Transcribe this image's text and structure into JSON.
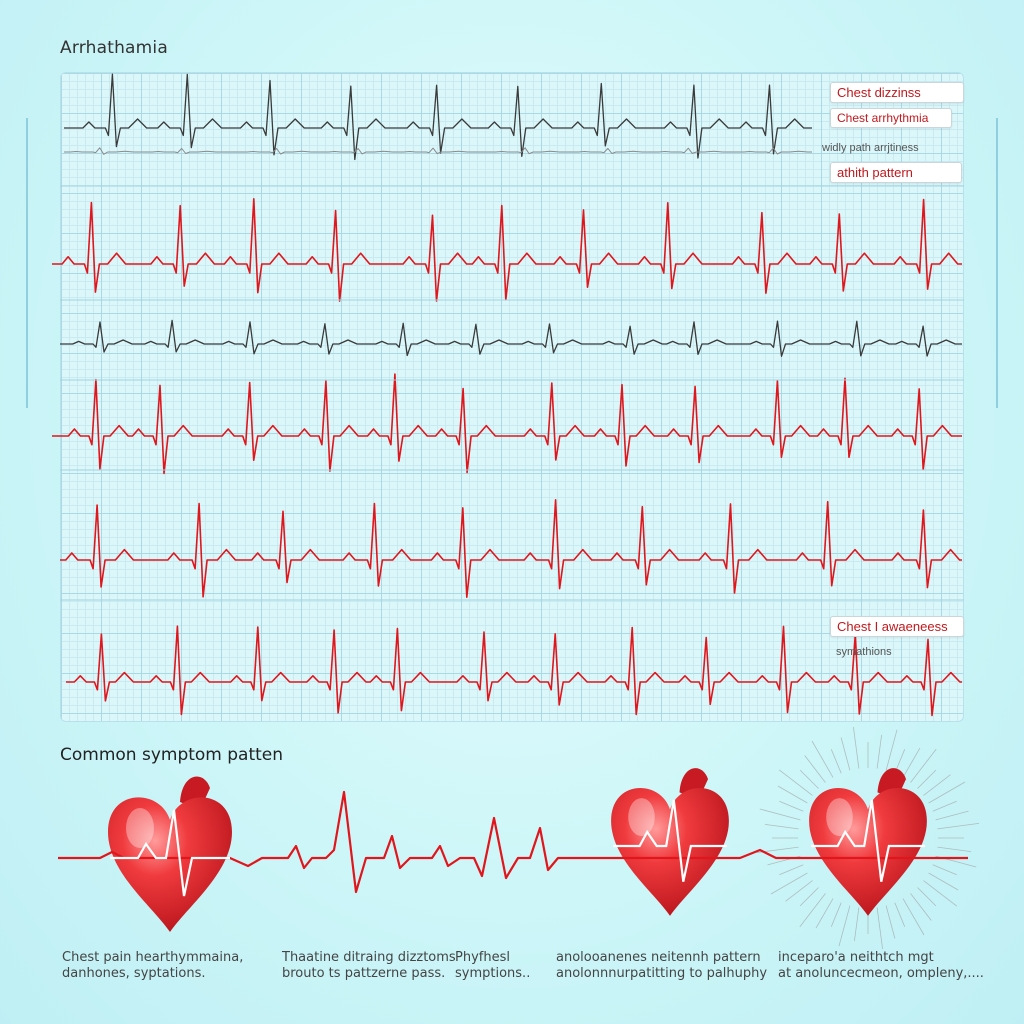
{
  "header": {
    "title": "Arrhathamia"
  },
  "colors": {
    "trace_red": "#e0161c",
    "trace_dark": "#3a3a3a",
    "heart_red": "#e3262c"
  },
  "callouts": {
    "top_1": "Chest dizzinss",
    "top_2": "Chest arrhythmia",
    "top_3": "widly path arrjtiness",
    "top_4": "athith pattern",
    "bottom_1": "Chest I awaeneess",
    "bottom_2": "symathions"
  },
  "section": {
    "heading": "Common symptom patten"
  },
  "captions": [
    {
      "line1": "Chest pain hearthymmaina,",
      "line2": "danhones, syptations."
    },
    {
      "line1": "Thaatine ditraing dizztoms",
      "line2": "brouto ts pattzerne pass."
    },
    {
      "line1": "Phyfhesl",
      "line2": "symptions.."
    },
    {
      "line1": "anolooanenes neitennh pattern",
      "line2": "anolonnnurpatitting to palhuphy"
    },
    {
      "line1": "inceparo'a neithtch mgt",
      "line2": "at anoluncecmeon, ompleny,...."
    }
  ],
  "icons": [
    "heart-icon",
    "heart-icon",
    "heart-icon"
  ]
}
